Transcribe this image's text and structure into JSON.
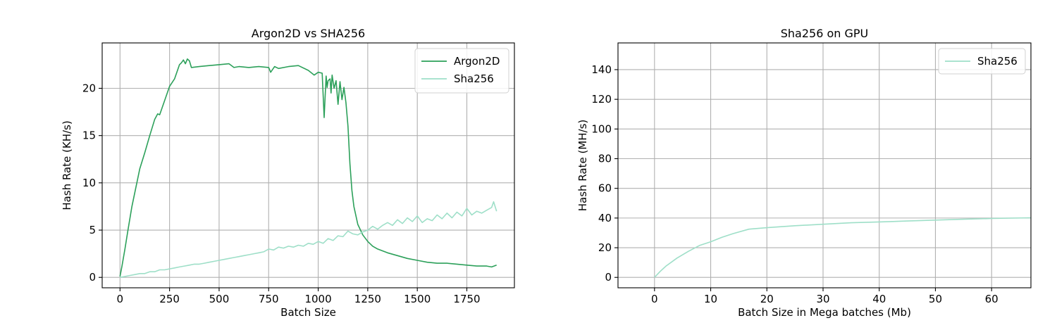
{
  "chart_data": [
    {
      "type": "line",
      "title": "Argon2D vs SHA256",
      "xlabel": "Batch Size",
      "ylabel": "Hash Rate (KH/s)",
      "xlim": [
        -90,
        1990
      ],
      "ylim": [
        -1.1,
        24.8
      ],
      "xticks": [
        0,
        250,
        500,
        750,
        1000,
        1250,
        1500,
        1750
      ],
      "xtick_labels": [
        "0",
        "250",
        "500",
        "750",
        "1000",
        "1250",
        "1500",
        "1750"
      ],
      "yticks": [
        0,
        5,
        10,
        15,
        20
      ],
      "ytick_labels": [
        "0",
        "5",
        "10",
        "15",
        "20"
      ],
      "grid": true,
      "legend_position": "top-right",
      "series": [
        {
          "name": "Argon2D",
          "color": "#2ca05a",
          "x": [
            0,
            10,
            25,
            40,
            60,
            80,
            100,
            125,
            150,
            175,
            190,
            200,
            225,
            250,
            275,
            300,
            310,
            320,
            330,
            340,
            350,
            360,
            400,
            450,
            500,
            550,
            575,
            600,
            650,
            700,
            750,
            760,
            780,
            800,
            850,
            900,
            950,
            980,
            1000,
            1020,
            1030,
            1040,
            1045,
            1050,
            1060,
            1065,
            1070,
            1080,
            1090,
            1100,
            1110,
            1120,
            1130,
            1140,
            1150,
            1160,
            1170,
            1180,
            1200,
            1225,
            1250,
            1275,
            1300,
            1350,
            1400,
            1450,
            1500,
            1550,
            1600,
            1650,
            1700,
            1750,
            1800,
            1850,
            1875,
            1900
          ],
          "y": [
            0.1,
            1.2,
            3.0,
            5.0,
            7.5,
            9.5,
            11.5,
            13.2,
            15.0,
            16.7,
            17.3,
            17.2,
            18.7,
            20.2,
            21.0,
            22.5,
            22.7,
            23.0,
            22.6,
            23.1,
            22.9,
            22.2,
            22.3,
            22.4,
            22.5,
            22.6,
            22.2,
            22.3,
            22.2,
            22.3,
            22.2,
            21.7,
            22.3,
            22.1,
            22.3,
            22.4,
            21.9,
            21.4,
            21.7,
            21.6,
            16.9,
            21.3,
            20.1,
            20.8,
            21.0,
            19.5,
            21.4,
            20.0,
            20.8,
            18.3,
            20.7,
            18.8,
            20.1,
            18.5,
            16.0,
            12.0,
            9.2,
            7.5,
            5.6,
            4.5,
            3.8,
            3.3,
            3.0,
            2.6,
            2.3,
            2.0,
            1.8,
            1.6,
            1.5,
            1.5,
            1.4,
            1.3,
            1.2,
            1.2,
            1.1,
            1.3
          ]
        },
        {
          "name": "Sha256",
          "color": "#9edfc8",
          "x": [
            0,
            25,
            50,
            75,
            100,
            125,
            150,
            175,
            200,
            225,
            250,
            275,
            300,
            325,
            350,
            375,
            400,
            425,
            450,
            475,
            500,
            525,
            550,
            575,
            600,
            625,
            650,
            675,
            700,
            725,
            750,
            775,
            800,
            825,
            850,
            875,
            900,
            925,
            950,
            975,
            1000,
            1025,
            1050,
            1075,
            1100,
            1125,
            1150,
            1175,
            1200,
            1225,
            1250,
            1275,
            1300,
            1325,
            1350,
            1375,
            1400,
            1425,
            1450,
            1475,
            1500,
            1525,
            1550,
            1575,
            1600,
            1625,
            1650,
            1675,
            1700,
            1725,
            1750,
            1775,
            1800,
            1825,
            1850,
            1875,
            1885,
            1900
          ],
          "y": [
            0.0,
            0.1,
            0.2,
            0.3,
            0.4,
            0.4,
            0.6,
            0.6,
            0.8,
            0.8,
            0.9,
            1.0,
            1.1,
            1.2,
            1.3,
            1.4,
            1.4,
            1.5,
            1.6,
            1.7,
            1.8,
            1.9,
            2.0,
            2.1,
            2.2,
            2.3,
            2.4,
            2.5,
            2.6,
            2.7,
            3.0,
            2.9,
            3.2,
            3.1,
            3.3,
            3.2,
            3.4,
            3.3,
            3.6,
            3.5,
            3.8,
            3.6,
            4.1,
            3.9,
            4.4,
            4.3,
            4.9,
            4.6,
            4.5,
            4.8,
            5.0,
            5.4,
            5.1,
            5.5,
            5.8,
            5.5,
            6.1,
            5.7,
            6.3,
            5.9,
            6.5,
            5.8,
            6.2,
            6.0,
            6.6,
            6.2,
            6.8,
            6.3,
            6.9,
            6.5,
            7.3,
            6.6,
            7.0,
            6.8,
            7.1,
            7.4,
            8.0,
            7.0
          ]
        }
      ]
    },
    {
      "type": "line",
      "title": "Sha256 on GPU",
      "xlabel": "Batch Size in Mega batches (Mb)",
      "ylabel": "Hash Rate (MH/s)",
      "xlim": [
        -6.5,
        67
      ],
      "ylim": [
        -7,
        158
      ],
      "xticks": [
        0,
        10,
        20,
        30,
        40,
        50,
        60
      ],
      "xtick_labels": [
        "0",
        "10",
        "20",
        "30",
        "40",
        "50",
        "60"
      ],
      "yticks": [
        0,
        20,
        40,
        60,
        80,
        100,
        120,
        140
      ],
      "ytick_labels": [
        "0",
        "20",
        "40",
        "60",
        "80",
        "100",
        "120",
        "140"
      ],
      "grid": true,
      "legend_position": "top-right",
      "series": [
        {
          "name": "Sha256",
          "color": "#9edfc8",
          "x": [
            0,
            1,
            2,
            4,
            6,
            8,
            10,
            12,
            14,
            16.8,
            20,
            25,
            30,
            35,
            40,
            45,
            50,
            55,
            60,
            67
          ],
          "y": [
            0,
            4,
            7.5,
            13,
            17.5,
            21.5,
            24,
            27,
            29.5,
            32.5,
            33.5,
            34.8,
            35.8,
            36.8,
            37.4,
            38,
            38.6,
            39.2,
            39.7,
            40.2
          ]
        }
      ]
    }
  ]
}
